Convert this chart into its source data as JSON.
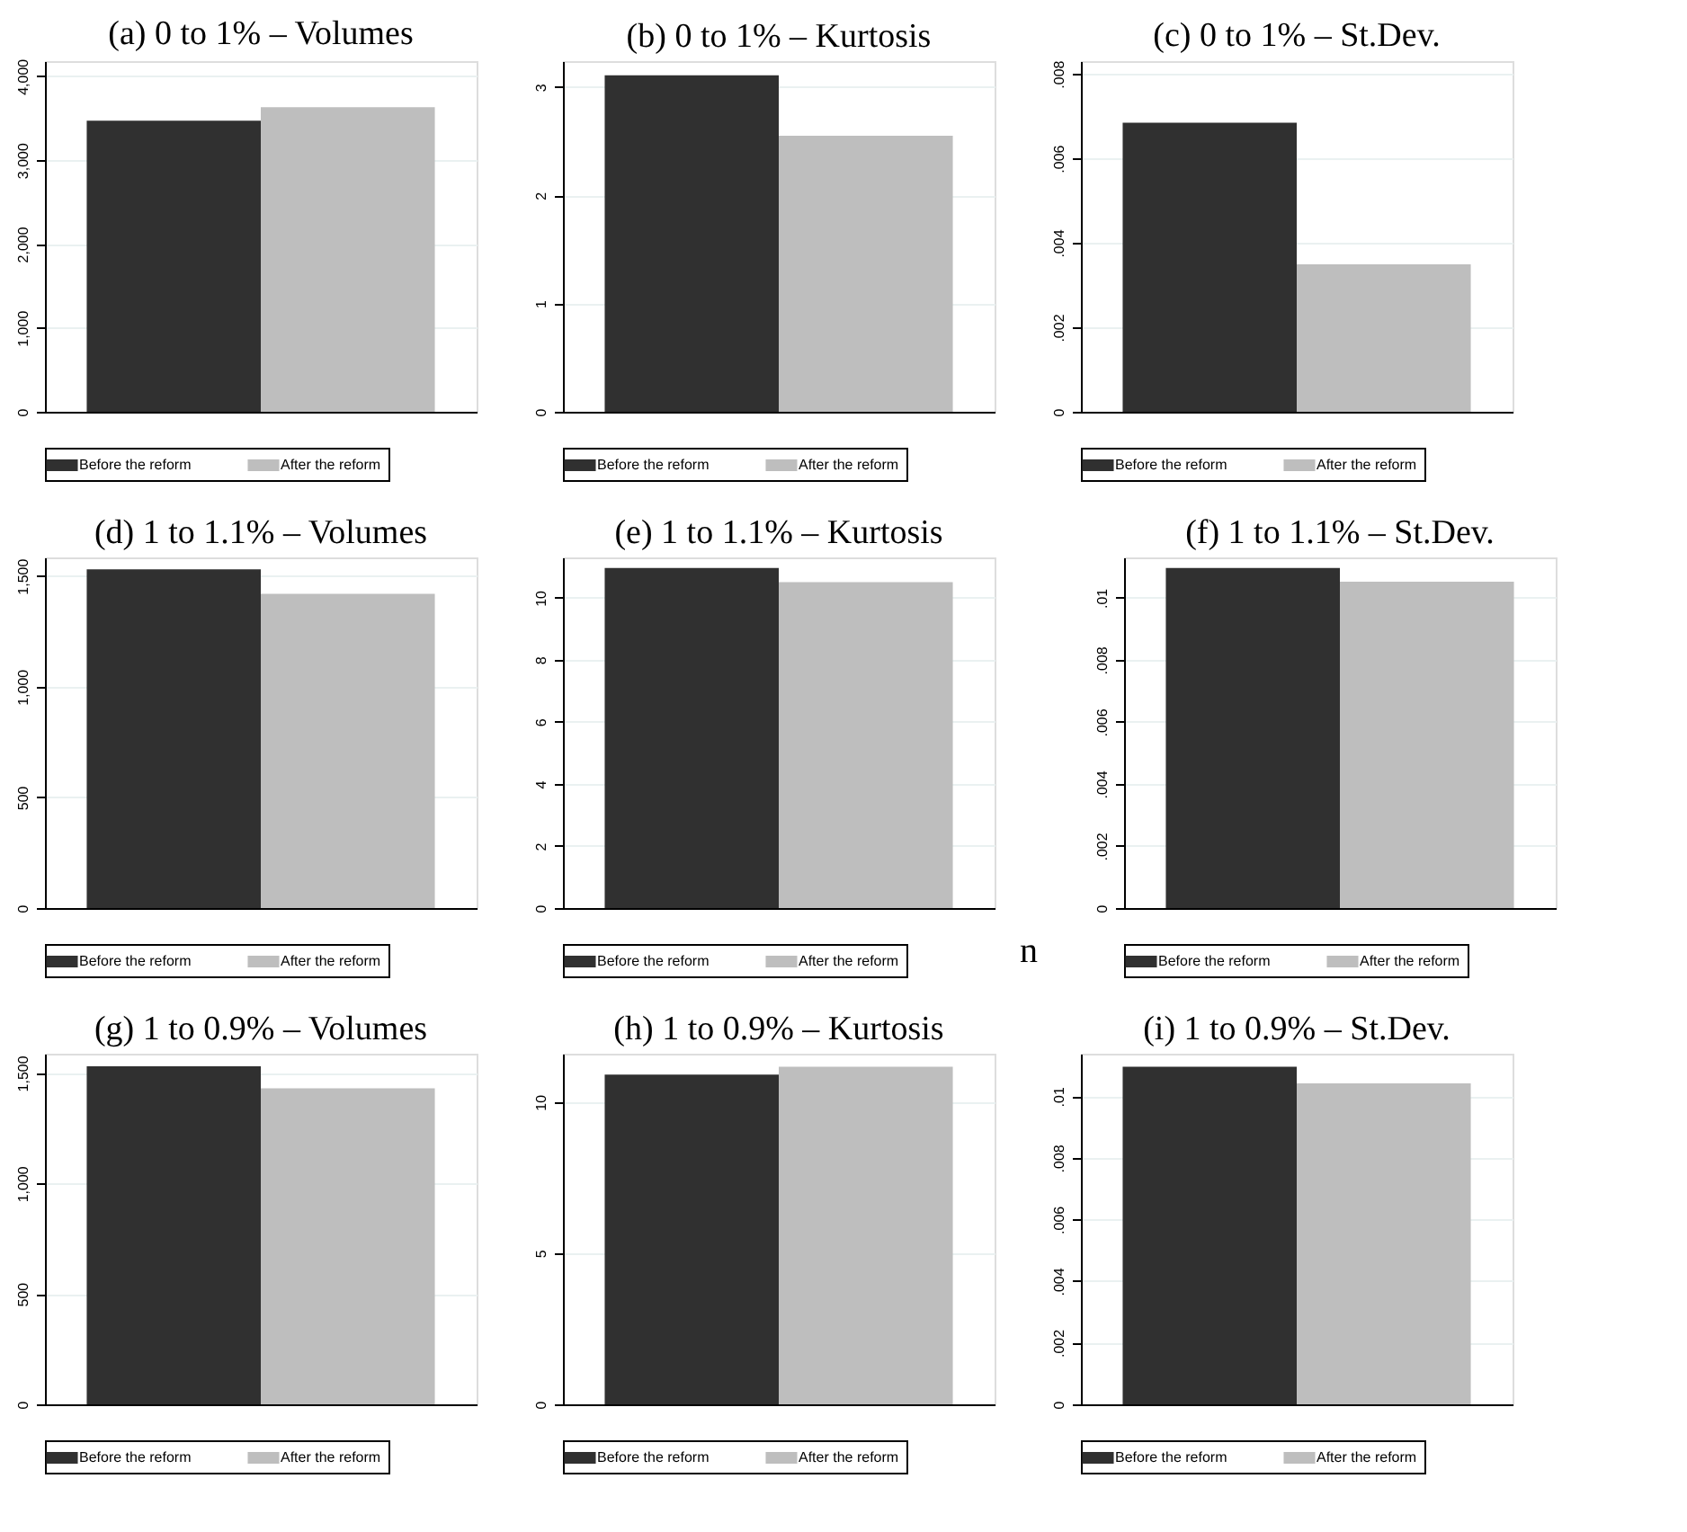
{
  "chart_data": [
    {
      "type": "bar",
      "title": "(a) 0 to 1% – Volumes",
      "categories": [
        null
      ],
      "series": [
        {
          "name": "Before the reform",
          "color": "#303030",
          "values": [
            3470
          ]
        },
        {
          "name": "After the reform",
          "color": "#bebebe",
          "values": [
            3630
          ]
        }
      ],
      "ylim": [
        0,
        4180
      ],
      "yticks": [
        0,
        {
          "value": 1000,
          "label": "1,000"
        },
        {
          "value": 2000,
          "label": "2,000"
        },
        {
          "value": 3000,
          "label": "3,000"
        },
        {
          "value": 4000,
          "label": "4,000"
        }
      ],
      "grid": "y",
      "legend": "bottom"
    },
    {
      "type": "bar",
      "title": "(b) 0 to 1% – Kurtosis",
      "categories": [
        null
      ],
      "series": [
        {
          "name": "Before the reform",
          "color": "#303030",
          "values": [
            3.11
          ]
        },
        {
          "name": "After the reform",
          "color": "#bebebe",
          "values": [
            2.55
          ]
        }
      ],
      "ylim": [
        0,
        3.24
      ],
      "yticks": [
        0,
        1,
        2,
        3
      ],
      "grid": "y",
      "legend": "bottom"
    },
    {
      "type": "bar",
      "title": "(c) 0 to 1% – St.Dev.",
      "categories": [
        null
      ],
      "series": [
        {
          "name": "Before the reform",
          "color": "#303030",
          "values": [
            0.00684
          ]
        },
        {
          "name": "After the reform",
          "color": "#bebebe",
          "values": [
            0.00349
          ]
        }
      ],
      "ylim": [
        0,
        0.0083
      ],
      "yticks": [
        0,
        {
          "value": 0.002,
          "label": ".002"
        },
        {
          "value": 0.004,
          "label": ".004"
        },
        {
          "value": 0.006,
          "label": ".006"
        },
        {
          "value": 0.008,
          "label": ".008"
        }
      ],
      "grid": "y",
      "legend": "bottom"
    },
    {
      "type": "bar",
      "title": "(d) 1 to 1.1% – Volumes",
      "categories": [
        null
      ],
      "series": [
        {
          "name": "Before the reform",
          "color": "#303030",
          "values": [
            1530
          ]
        },
        {
          "name": "After the reform",
          "color": "#bebebe",
          "values": [
            1420
          ]
        }
      ],
      "ylim": [
        0,
        1584
      ],
      "yticks": [
        0,
        500,
        {
          "value": 1000,
          "label": "1,000"
        },
        {
          "value": 1500,
          "label": "1,500"
        }
      ],
      "grid": "y",
      "legend": "bottom"
    },
    {
      "type": "bar",
      "title": "(e) 1 to 1.1% – Kurtosis",
      "categories": [
        null
      ],
      "series": [
        {
          "name": "Before the reform",
          "color": "#303030",
          "values": [
            10.96
          ]
        },
        {
          "name": "After the reform",
          "color": "#bebebe",
          "values": [
            10.5
          ]
        }
      ],
      "ylim": [
        0,
        11.3
      ],
      "yticks": [
        0,
        2,
        4,
        6,
        8,
        10
      ],
      "grid": "y",
      "legend": "bottom",
      "annotations": [
        "n"
      ]
    },
    {
      "type": "bar",
      "title": "(f) 1 to 1.1% – St.Dev.",
      "categories": [
        null
      ],
      "series": [
        {
          "name": "Before the reform",
          "color": "#303030",
          "values": [
            0.01096
          ]
        },
        {
          "name": "After the reform",
          "color": "#bebebe",
          "values": [
            0.01052
          ]
        }
      ],
      "ylim": [
        0,
        0.0113
      ],
      "yticks": [
        0,
        {
          "value": 0.002,
          "label": ".002"
        },
        {
          "value": 0.004,
          "label": ".004"
        },
        {
          "value": 0.006,
          "label": ".006"
        },
        {
          "value": 0.008,
          "label": ".008"
        },
        {
          "value": 0.01,
          "label": ".01"
        }
      ],
      "grid": "y",
      "legend": "bottom"
    },
    {
      "type": "bar",
      "title": "(g) 1 to 0.9% – Volumes",
      "categories": [
        null
      ],
      "series": [
        {
          "name": "Before the reform",
          "color": "#303030",
          "values": [
            1530
          ]
        },
        {
          "name": "After the reform",
          "color": "#bebebe",
          "values": [
            1430
          ]
        }
      ],
      "ylim": [
        0,
        1587
      ],
      "yticks": [
        0,
        500,
        {
          "value": 1000,
          "label": "1,000"
        },
        {
          "value": 1500,
          "label": "1,500"
        }
      ],
      "grid": "y",
      "legend": "bottom"
    },
    {
      "type": "bar",
      "title": "(h) 1 to 0.9% – Kurtosis",
      "categories": [
        null
      ],
      "series": [
        {
          "name": "Before the reform",
          "color": "#303030",
          "values": [
            10.91
          ]
        },
        {
          "name": "After the reform",
          "color": "#bebebe",
          "values": [
            11.17
          ]
        }
      ],
      "ylim": [
        0,
        11.6
      ],
      "yticks": [
        0,
        5,
        10
      ],
      "grid": "y",
      "legend": "bottom"
    },
    {
      "type": "bar",
      "title": "(i) 1 to 0.9% – St.Dev.",
      "categories": [
        null
      ],
      "series": [
        {
          "name": "Before the reform",
          "color": "#303030",
          "values": [
            0.01096
          ]
        },
        {
          "name": "After the reform",
          "color": "#bebebe",
          "values": [
            0.01042
          ]
        }
      ],
      "ylim": [
        0,
        0.01138
      ],
      "yticks": [
        0,
        {
          "value": 0.002,
          "label": ".002"
        },
        {
          "value": 0.004,
          "label": ".004"
        },
        {
          "value": 0.006,
          "label": ".006"
        },
        {
          "value": 0.008,
          "label": ".008"
        },
        {
          "value": 0.01,
          "label": ".01"
        }
      ],
      "grid": "y",
      "legend": "bottom"
    }
  ]
}
